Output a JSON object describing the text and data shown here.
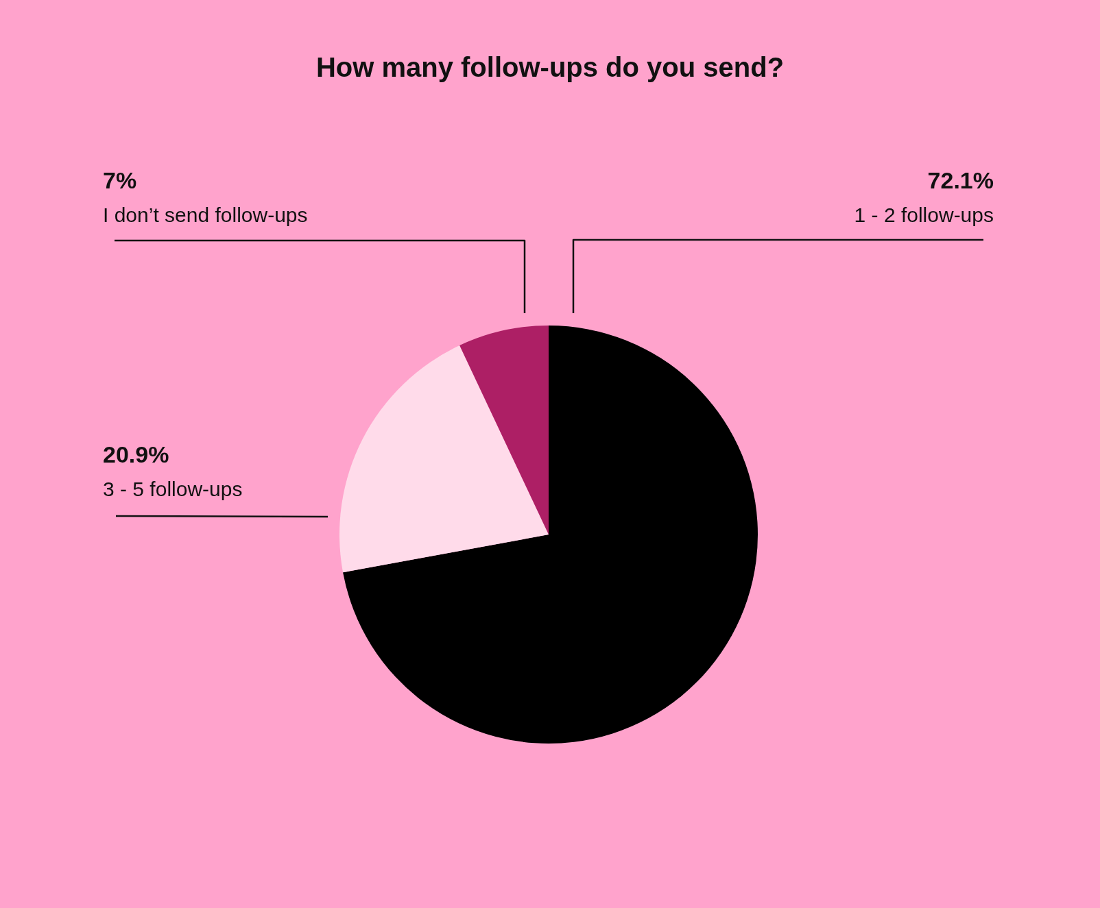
{
  "chart_data": {
    "type": "pie",
    "title": "How many follow-ups do you send?",
    "categories": [
      "1 - 2 follow-ups",
      "3 - 5 follow-ups",
      "I don’t send follow-ups"
    ],
    "values": [
      72.1,
      20.9,
      7
    ],
    "colors": [
      "#000000",
      "#ffdbea",
      "#ad1f65"
    ],
    "value_labels": [
      "72.1%",
      "20.9%",
      "7%"
    ],
    "legend": false
  }
}
